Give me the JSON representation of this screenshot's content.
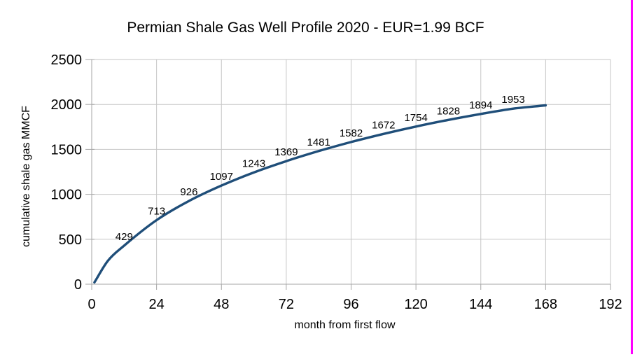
{
  "window": {
    "background": "#ffffff",
    "right_border_color": "#ff00ff"
  },
  "chart_data": {
    "type": "line",
    "title": "Permian Shale Gas Well Profile 2020 - EUR=1.99 BCF",
    "xlabel": "month from first flow",
    "ylabel": "cumulative shale gas MMCF",
    "xlim": [
      0,
      192
    ],
    "ylim": [
      0,
      2500
    ],
    "x_ticks": [
      0,
      24,
      48,
      72,
      96,
      120,
      144,
      168,
      192
    ],
    "y_ticks": [
      0,
      500,
      1000,
      1500,
      2000,
      2500
    ],
    "grid": true,
    "legend_position": "none",
    "colors": {
      "line": "#1f4e79",
      "grid": "#c6c6c6",
      "axis": "#a6a6a6",
      "tick": "#a6a6a6",
      "label_text": "#000000"
    },
    "series": [
      {
        "name": "cumulative shale gas MMCF",
        "line_width": 3.4,
        "points": [
          {
            "month": 1,
            "value": 20,
            "label": ""
          },
          {
            "month": 6,
            "value": 262,
            "label": ""
          },
          {
            "month": 12,
            "value": 429,
            "label": "429"
          },
          {
            "month": 24,
            "value": 713,
            "label": "713"
          },
          {
            "month": 36,
            "value": 926,
            "label": "926"
          },
          {
            "month": 48,
            "value": 1097,
            "label": "1097"
          },
          {
            "month": 60,
            "value": 1243,
            "label": "1243"
          },
          {
            "month": 72,
            "value": 1369,
            "label": "1369"
          },
          {
            "month": 84,
            "value": 1481,
            "label": "1481"
          },
          {
            "month": 96,
            "value": 1582,
            "label": "1582"
          },
          {
            "month": 108,
            "value": 1672,
            "label": "1672"
          },
          {
            "month": 120,
            "value": 1754,
            "label": "1754"
          },
          {
            "month": 132,
            "value": 1828,
            "label": "1828"
          },
          {
            "month": 144,
            "value": 1894,
            "label": "1894"
          },
          {
            "month": 156,
            "value": 1953,
            "label": "1953"
          },
          {
            "month": 168,
            "value": 1990,
            "label": ""
          }
        ]
      }
    ]
  }
}
